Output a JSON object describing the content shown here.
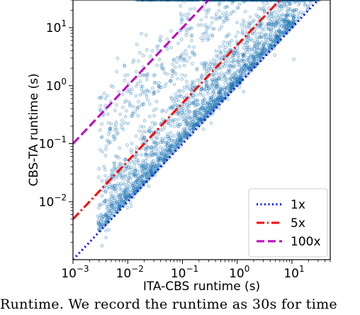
{
  "chart_data": {
    "type": "scatter",
    "xlabel": "ITA-CBS runtime (s)",
    "ylabel": "CBS-TA runtime (s)",
    "xscale": "log",
    "yscale": "log",
    "xlim": [
      0.001,
      50
    ],
    "ylim": [
      0.001,
      30
    ],
    "x_ticks": [
      {
        "value": 0.001,
        "base": "10",
        "exp": "−3"
      },
      {
        "value": 0.01,
        "base": "10",
        "exp": "−2"
      },
      {
        "value": 0.1,
        "base": "10",
        "exp": "−1"
      },
      {
        "value": 1,
        "base": "10",
        "exp": "0"
      },
      {
        "value": 10,
        "base": "10",
        "exp": "1"
      }
    ],
    "y_ticks": [
      {
        "value": 0.01,
        "base": "10",
        "exp": "−2"
      },
      {
        "value": 0.1,
        "base": "10",
        "exp": "−1"
      },
      {
        "value": 1,
        "base": "10",
        "exp": "0"
      },
      {
        "value": 10,
        "base": "10",
        "exp": "1"
      }
    ],
    "reference_lines": [
      {
        "name": "1x",
        "factor": 1,
        "color": "#0000ff",
        "style": "dotted"
      },
      {
        "name": "5x",
        "factor": 5,
        "color": "#ff0000",
        "style": "dashdot"
      },
      {
        "name": "100x",
        "factor": 100,
        "color": "#bf00bf",
        "style": "dashed"
      }
    ],
    "timeout_value": 30,
    "legend_position": "lower-right",
    "point_color": "#1f77b4",
    "grid": false
  },
  "caption": "Runtime. We record the runtime as 30s for time"
}
